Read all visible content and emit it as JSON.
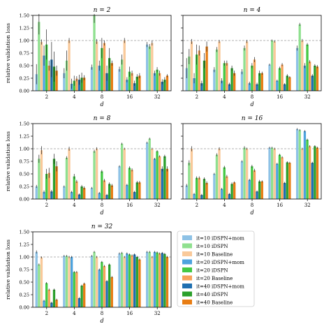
{
  "figure": {
    "y_axis_label": "relative validation loss",
    "x_axis_label": "d",
    "baseline_value": 1.0
  },
  "legend": {
    "entries": [
      {
        "label": "it=10 iDSPN+mom",
        "color": "#8ec2e6"
      },
      {
        "label": "it=10 iDSPN",
        "color": "#8fe08f"
      },
      {
        "label": "it=10 Baseline",
        "color": "#f9c99a"
      },
      {
        "label": "it=20 iDSPN+mom",
        "color": "#4da3de"
      },
      {
        "label": "it=20 iDSPN",
        "color": "#44c944"
      },
      {
        "label": "it=20 Baseline",
        "color": "#f6a25a"
      },
      {
        "label": "it=40 iDSPN+mom",
        "color": "#1f6fb0"
      },
      {
        "label": "it=40 iDSPN",
        "color": "#2ca02c"
      },
      {
        "label": "it=40 Baseline",
        "color": "#e87d14"
      }
    ]
  },
  "chart_data": [
    {
      "type": "bar",
      "title": "n = 2",
      "xlabel": "d",
      "ylabel": "relative validation loss",
      "categories": [
        "2",
        "4",
        "8",
        "16",
        "32"
      ],
      "ylim": [
        0,
        1.5
      ],
      "yticks": [
        "0.00",
        "0.25",
        "0.50",
        "0.75",
        "1.00",
        "1.25",
        "1.50"
      ],
      "series": [
        {
          "name": "it=10 iDSPN+mom",
          "values": [
            0.33,
            0.35,
            0.47,
            0.43,
            0.92
          ],
          "err": [
            0.2,
            0.1,
            0.05,
            0.05,
            0.05
          ]
        },
        {
          "name": "it=10 iDSPN",
          "values": [
            1.37,
            0.6,
            1.5,
            0.62,
            0.88
          ],
          "err": [
            0.25,
            0.2,
            0.15,
            0.1,
            0.05
          ]
        },
        {
          "name": "it=10 Baseline",
          "values": [
            0.97,
            1.0,
            0.98,
            1.0,
            0.95
          ],
          "err": [
            0.05,
            0.05,
            0.05,
            0.05,
            0.05
          ]
        },
        {
          "name": "it=20 iDSPN+mom",
          "values": [
            0.7,
            0.14,
            0.5,
            0.22,
            0.35
          ],
          "err": [
            0.2,
            0.1,
            0.1,
            0.05,
            0.05
          ]
        },
        {
          "name": "it=20 iDSPN",
          "values": [
            0.92,
            0.2,
            0.85,
            0.38,
            0.42
          ],
          "err": [
            0.3,
            0.1,
            0.2,
            0.1,
            0.05
          ]
        },
        {
          "name": "it=20 Baseline",
          "values": [
            0.5,
            0.24,
            0.95,
            0.35,
            0.35
          ],
          "err": [
            0.1,
            0.05,
            0.05,
            0.05,
            0.05
          ]
        },
        {
          "name": "it=40 iDSPN+mom",
          "values": [
            0.62,
            0.22,
            0.35,
            0.15,
            0.18
          ],
          "err": [
            0.35,
            0.1,
            0.15,
            0.05,
            0.05
          ]
        },
        {
          "name": "it=40 iDSPN",
          "values": [
            0.48,
            0.26,
            0.65,
            0.28,
            0.22
          ],
          "err": [
            0.3,
            0.1,
            0.2,
            0.05,
            0.05
          ]
        },
        {
          "name": "it=40 Baseline",
          "values": [
            0.4,
            0.26,
            0.55,
            0.3,
            0.3
          ],
          "err": [
            0.1,
            0.05,
            0.05,
            0.05,
            0.03
          ]
        }
      ]
    },
    {
      "type": "bar",
      "title": "n = 4",
      "xlabel": "d",
      "ylabel": "",
      "categories": [
        "2",
        "4",
        "8",
        "16",
        "32"
      ],
      "ylim": [
        0,
        1.5
      ],
      "yticks": [
        "0.00",
        "0.25",
        "0.50",
        "0.75",
        "1.00",
        "1.25",
        "1.50"
      ],
      "series": [
        {
          "name": "it=10 iDSPN+mom",
          "values": [
            0.45,
            0.42,
            0.38,
            0.52,
            0.85
          ],
          "err": [
            0.2,
            0.05,
            0.05,
            0.02,
            0.05
          ]
        },
        {
          "name": "it=10 iDSPN",
          "values": [
            0.68,
            0.82,
            0.85,
            1.0,
            1.32
          ],
          "err": [
            0.15,
            0.05,
            0.05,
            0.02,
            0.03
          ]
        },
        {
          "name": "it=10 Baseline",
          "values": [
            0.98,
            0.98,
            0.98,
            0.98,
            1.0
          ],
          "err": [
            0.05,
            0.03,
            0.03,
            0.02,
            0.03
          ]
        },
        {
          "name": "it=20 iDSPN+mom",
          "values": [
            0.25,
            0.2,
            0.15,
            0.2,
            0.5
          ],
          "err": [
            0.1,
            0.05,
            0.03,
            0.02,
            0.05
          ]
        },
        {
          "name": "it=20 iDSPN",
          "values": [
            0.72,
            0.55,
            0.5,
            0.45,
            0.92
          ],
          "err": [
            0.2,
            0.05,
            0.05,
            0.03,
            0.03
          ]
        },
        {
          "name": "it=20 Baseline",
          "values": [
            0.8,
            0.55,
            0.62,
            0.52,
            0.58
          ],
          "err": [
            0.1,
            0.05,
            0.05,
            0.03,
            0.03
          ]
        },
        {
          "name": "it=40 iDSPN+mom",
          "values": [
            0.15,
            0.13,
            0.13,
            0.13,
            0.3
          ],
          "err": [
            0.05,
            0.03,
            0.03,
            0.02,
            0.03
          ]
        },
        {
          "name": "it=40 iDSPN",
          "values": [
            0.6,
            0.45,
            0.35,
            0.3,
            0.5
          ],
          "err": [
            0.15,
            0.05,
            0.05,
            0.03,
            0.03
          ]
        },
        {
          "name": "it=40 Baseline",
          "values": [
            0.88,
            0.35,
            0.35,
            0.27,
            0.48
          ],
          "err": [
            0.1,
            0.05,
            0.03,
            0.02,
            0.03
          ]
        }
      ]
    },
    {
      "type": "bar",
      "title": "n = 8",
      "xlabel": "d",
      "ylabel": "relative validation loss",
      "categories": [
        "2",
        "4",
        "8",
        "16",
        "32"
      ],
      "ylim": [
        0,
        1.5
      ],
      "yticks": [
        "0.00",
        "0.25",
        "0.50",
        "0.75",
        "1.00",
        "1.25",
        "1.50"
      ],
      "series": [
        {
          "name": "it=10 iDSPN+mom",
          "values": [
            0.25,
            0.25,
            0.22,
            0.65,
            1.12
          ],
          "err": [
            0.03,
            0.02,
            0.02,
            0.02,
            0.02
          ]
        },
        {
          "name": "it=10 iDSPN",
          "values": [
            0.8,
            0.82,
            0.95,
            1.1,
            1.2
          ],
          "err": [
            0.08,
            0.03,
            0.03,
            0.02,
            0.02
          ]
        },
        {
          "name": "it=10 Baseline",
          "values": [
            0.97,
            1.0,
            1.0,
            1.0,
            1.0
          ],
          "err": [
            0.08,
            0.04,
            0.03,
            0.02,
            0.02
          ]
        },
        {
          "name": "it=20 iDSPN+mom",
          "values": [
            0.14,
            0.14,
            0.12,
            0.28,
            0.8
          ],
          "err": [
            0.03,
            0.02,
            0.02,
            0.02,
            0.02
          ]
        },
        {
          "name": "it=20 iDSPN",
          "values": [
            0.5,
            0.45,
            0.55,
            0.62,
            0.95
          ],
          "err": [
            0.1,
            0.05,
            0.03,
            0.03,
            0.02
          ]
        },
        {
          "name": "it=20 Baseline",
          "values": [
            0.52,
            0.35,
            0.37,
            0.58,
            0.85
          ],
          "err": [
            0.1,
            0.03,
            0.03,
            0.03,
            0.02
          ]
        },
        {
          "name": "it=40 iDSPN+mom",
          "values": [
            0.15,
            0.09,
            0.08,
            0.14,
            0.6
          ],
          "err": [
            0.03,
            0.02,
            0.02,
            0.02,
            0.05
          ]
        },
        {
          "name": "it=40 iDSPN",
          "values": [
            0.8,
            0.25,
            0.3,
            0.33,
            0.85
          ],
          "err": [
            0.1,
            0.03,
            0.03,
            0.03,
            0.03
          ]
        },
        {
          "name": "it=40 Baseline",
          "values": [
            0.65,
            0.22,
            0.27,
            0.33,
            0.6
          ],
          "err": [
            0.1,
            0.03,
            0.03,
            0.03,
            0.05
          ]
        }
      ]
    },
    {
      "type": "bar",
      "title": "n = 16",
      "xlabel": "d",
      "ylabel": "",
      "categories": [
        "2",
        "4",
        "8",
        "16",
        "32"
      ],
      "ylim": [
        0,
        1.5
      ],
      "yticks": [
        "0.00",
        "0.25",
        "0.50",
        "0.75",
        "1.00",
        "1.25",
        "1.50"
      ],
      "series": [
        {
          "name": "it=10 iDSPN+mom",
          "values": [
            0.27,
            0.5,
            0.75,
            1.02,
            1.39
          ],
          "err": [
            0.03,
            0.02,
            0.02,
            0.02,
            0.02
          ]
        },
        {
          "name": "it=10 iDSPN",
          "values": [
            0.72,
            0.88,
            1.02,
            1.02,
            1.37
          ],
          "err": [
            0.05,
            0.03,
            0.03,
            0.02,
            0.02
          ]
        },
        {
          "name": "it=10 Baseline",
          "values": [
            1.0,
            1.0,
            1.0,
            1.0,
            1.0
          ],
          "err": [
            0.05,
            0.03,
            0.02,
            0.02,
            0.02
          ]
        },
        {
          "name": "it=20 iDSPN+mom",
          "values": [
            0.1,
            0.2,
            0.38,
            0.7,
            1.35
          ],
          "err": [
            0.02,
            0.02,
            0.02,
            0.02,
            0.02
          ]
        },
        {
          "name": "it=20 iDSPN",
          "values": [
            0.42,
            0.63,
            0.65,
            0.88,
            1.18
          ],
          "err": [
            0.03,
            0.03,
            0.03,
            0.02,
            0.02
          ]
        },
        {
          "name": "it=20 Baseline",
          "values": [
            0.42,
            0.45,
            0.57,
            0.83,
            1.05
          ],
          "err": [
            0.03,
            0.03,
            0.03,
            0.02,
            0.02
          ]
        },
        {
          "name": "it=40 iDSPN+mom",
          "values": [
            0.08,
            0.1,
            0.15,
            0.32,
            0.72
          ],
          "err": [
            0.02,
            0.02,
            0.02,
            0.02,
            0.02
          ]
        },
        {
          "name": "it=40 iDSPN",
          "values": [
            0.4,
            0.3,
            0.35,
            0.73,
            1.05
          ],
          "err": [
            0.03,
            0.03,
            0.03,
            0.02,
            0.02
          ]
        },
        {
          "name": "it=40 Baseline",
          "values": [
            0.32,
            0.33,
            0.35,
            0.72,
            1.02
          ],
          "err": [
            0.03,
            0.02,
            0.02,
            0.02,
            0.02
          ]
        }
      ]
    },
    {
      "type": "bar",
      "title": "n = 32",
      "xlabel": "d",
      "ylabel": "relative validation loss",
      "categories": [
        "2",
        "4",
        "8",
        "16",
        "32"
      ],
      "ylim": [
        0,
        1.5
      ],
      "yticks": [
        "0.00",
        "0.25",
        "0.50",
        "0.75",
        "1.00",
        "1.25",
        "1.50"
      ],
      "series": [
        {
          "name": "it=10 iDSPN+mom",
          "values": [
            1.1,
            1.02,
            1.02,
            1.07,
            1.1
          ],
          "err": [
            0.03,
            0.02,
            0.02,
            0.02,
            0.02
          ]
        },
        {
          "name": "it=10 iDSPN",
          "values": [
            0.85,
            1.02,
            1.1,
            1.08,
            1.1
          ],
          "err": [
            0.02,
            0.02,
            0.02,
            0.02,
            0.02
          ]
        },
        {
          "name": "it=10 Baseline",
          "values": [
            0.99,
            1.0,
            1.0,
            1.0,
            1.0
          ],
          "err": [
            0.02,
            0.02,
            0.02,
            0.02,
            0.02
          ]
        },
        {
          "name": "it=20 iDSPN+mom",
          "values": [
            0.13,
            1.0,
            0.75,
            1.07,
            1.1
          ],
          "err": [
            0.02,
            0.02,
            0.02,
            0.02,
            0.02
          ]
        },
        {
          "name": "it=20 iDSPN",
          "values": [
            0.48,
            0.7,
            0.9,
            1.05,
            1.09
          ],
          "err": [
            0.02,
            0.02,
            0.02,
            0.02,
            0.02
          ]
        },
        {
          "name": "it=20 Baseline",
          "values": [
            0.35,
            0.7,
            0.82,
            1.03,
            1.07
          ],
          "err": [
            0.02,
            0.02,
            0.02,
            0.02,
            0.02
          ]
        },
        {
          "name": "it=40 iDSPN+mom",
          "values": [
            0.09,
            0.18,
            0.52,
            1.05,
            1.08
          ],
          "err": [
            0.02,
            0.02,
            0.02,
            0.02,
            0.02
          ]
        },
        {
          "name": "it=40 iDSPN",
          "values": [
            0.35,
            0.43,
            0.85,
            1.0,
            1.06
          ],
          "err": [
            0.02,
            0.02,
            0.02,
            0.02,
            0.02
          ]
        },
        {
          "name": "it=40 Baseline",
          "values": [
            0.15,
            0.47,
            0.6,
            0.95,
            1.0
          ],
          "err": [
            0.02,
            0.02,
            0.02,
            0.02,
            0.02
          ]
        }
      ]
    }
  ]
}
